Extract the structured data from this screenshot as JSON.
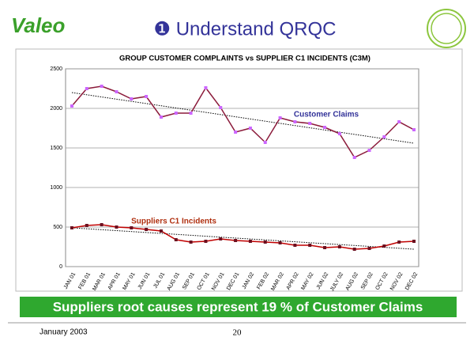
{
  "header": {
    "logo": "Valeo",
    "title": "❶ Understand QRQC"
  },
  "chart_data": {
    "type": "line",
    "title": "GROUP CUSTOMER COMPLAINTS vs SUPPLIER C1 INCIDENTS (C3M)",
    "categories": [
      "JAN 01",
      "FEB 01",
      "MAR 01",
      "APR 01",
      "MAY 01",
      "JUN 01",
      "JUL 01",
      "AUG 01",
      "SEP 01",
      "OCT 01",
      "NOV 01",
      "DEC 01",
      "JAN 02",
      "FEB 02",
      "MAR 02",
      "APR 02",
      "MAY 02",
      "JUN 02",
      "JULY 02",
      "AUG 02",
      "SEP 02",
      "OCT 02",
      "NOV 02",
      "DEC 02"
    ],
    "series": [
      {
        "name": "Customer Claims",
        "color": "#8b1a3a",
        "marker_color": "#cc66ff",
        "label_color": "#333399",
        "values": [
          2030,
          2250,
          2280,
          2210,
          2120,
          2150,
          1890,
          1940,
          1940,
          2260,
          2010,
          1700,
          1750,
          1570,
          1880,
          1830,
          1810,
          1760,
          1680,
          1380,
          1470,
          1640,
          1830,
          1730
        ]
      },
      {
        "name": "Suppliers C1 Incidents",
        "color": "#c00000",
        "marker_color": "#6b1020",
        "label_color": "#b03010",
        "values": [
          490,
          520,
          530,
          500,
          490,
          470,
          450,
          340,
          310,
          320,
          350,
          330,
          320,
          310,
          300,
          270,
          270,
          240,
          250,
          220,
          230,
          260,
          310,
          320
        ]
      }
    ],
    "trend_lines": [
      {
        "color": "#000000",
        "values": [
          2200,
          1560
        ]
      },
      {
        "color": "#000000",
        "values": [
          490,
          220
        ]
      }
    ],
    "ylim": [
      0,
      2500
    ],
    "yticks": [
      0,
      500,
      1000,
      1500,
      2000,
      2500
    ],
    "grid": true
  },
  "banner": "Suppliers root causes represent 19 % of Customer Claims",
  "footer": {
    "date": "January 2003",
    "page": "20"
  }
}
